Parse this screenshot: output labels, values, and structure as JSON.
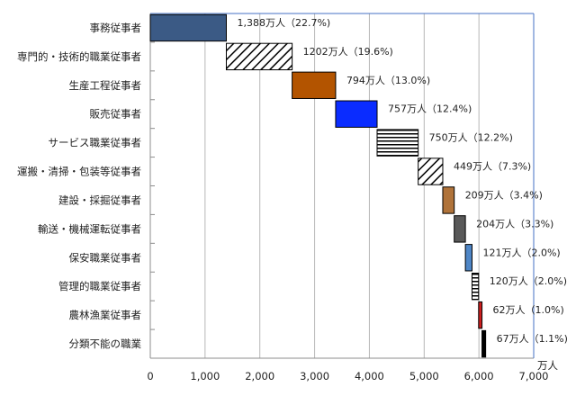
{
  "chart_data": {
    "type": "bar",
    "orientation": "horizontal",
    "style": "waterfall",
    "categories": [
      "事務従事者",
      "専門的・技術的職業従事者",
      "生産工程従事者",
      "販売従事者",
      "サービス職業従事者",
      "運搬・清掃・包装等従事者",
      "建設・採掘従事者",
      "輸送・機械運転従事者",
      "保安職業従事者",
      "管理的職業従事者",
      "農林漁業従事者",
      "分類不能の職業"
    ],
    "values": [
      1388,
      1202,
      794,
      757,
      750,
      449,
      209,
      204,
      121,
      120,
      62,
      67
    ],
    "data_labels": [
      "1,388万人（22.7%)",
      "1202万人（19.6%)",
      "794万人（13.0%)",
      "757万人（12.4%)",
      "750万人（12.2%)",
      "449万人（7.3%)",
      "209万人（3.4%)",
      "204万人（3.3%)",
      "121万人（2.0%)",
      "120万人（2.0%)",
      "62万人（1.0%)",
      "67万人（1.1%)"
    ],
    "bar_styles": [
      {
        "fill": "#3b5a85",
        "pattern": "solid"
      },
      {
        "fill": "#ffffff",
        "pattern": "diagonal"
      },
      {
        "fill": "#b35400",
        "pattern": "solid"
      },
      {
        "fill": "#0a2cff",
        "pattern": "solid"
      },
      {
        "fill": "#ffffff",
        "pattern": "horizontal"
      },
      {
        "fill": "#ffffff",
        "pattern": "diagonal"
      },
      {
        "fill": "#b0733a",
        "pattern": "solid"
      },
      {
        "fill": "#595959",
        "pattern": "solid"
      },
      {
        "fill": "#4f86c6",
        "pattern": "solid"
      },
      {
        "fill": "#ffffff",
        "pattern": "horizontal"
      },
      {
        "fill": "#cc1f1f",
        "pattern": "solid"
      },
      {
        "fill": "#000000",
        "pattern": "solid"
      }
    ],
    "xlim": [
      0,
      7000
    ],
    "x_ticks": [
      "0",
      "1,000",
      "2,000",
      "3,000",
      "4,000",
      "5,000",
      "6,000",
      "7,000"
    ],
    "x_unit": "万人",
    "grid": "vertical"
  }
}
